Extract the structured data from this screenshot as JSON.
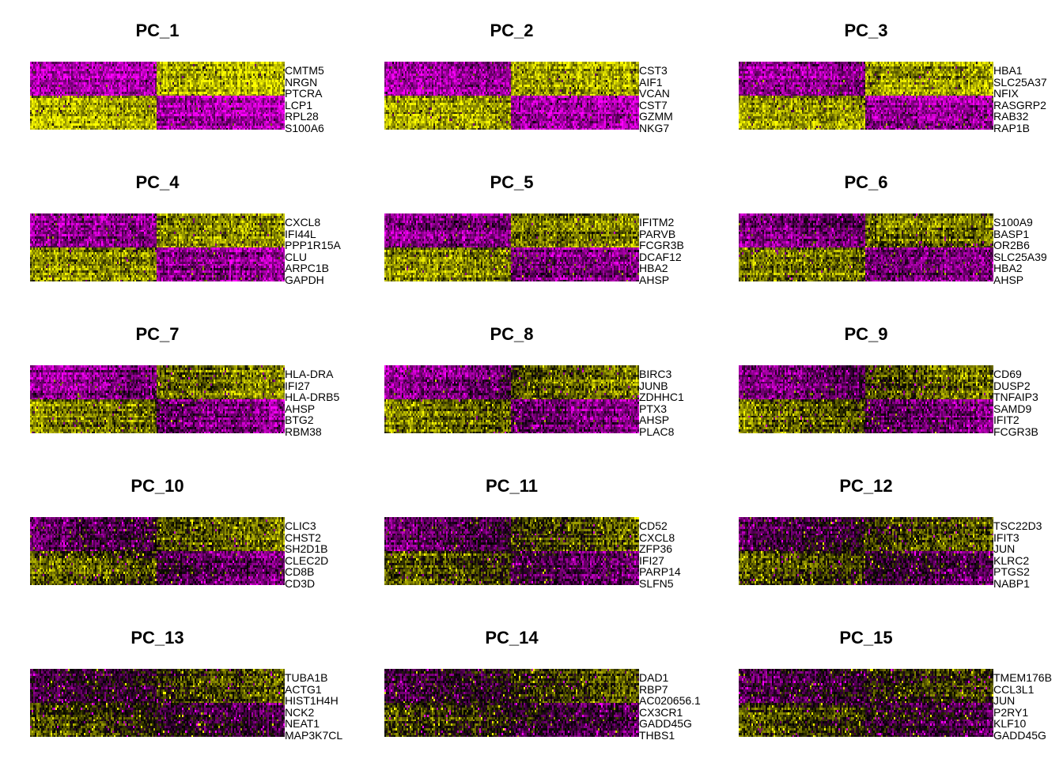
{
  "chart_data": [
    {
      "type": "heatmap",
      "title": "PC_1",
      "row_labels": [
        "CMTM5",
        "NRGN",
        "PTCRA",
        "LCP1",
        "RPL28",
        "S100A6"
      ],
      "colors": {
        "low": "#ff00ff",
        "mid": "#000000",
        "high": "#ffff00"
      }
    },
    {
      "type": "heatmap",
      "title": "PC_2",
      "row_labels": [
        "CST3",
        "AIF1",
        "VCAN",
        "CST7",
        "GZMM",
        "NKG7"
      ],
      "colors": {
        "low": "#ff00ff",
        "mid": "#000000",
        "high": "#ffff00"
      }
    },
    {
      "type": "heatmap",
      "title": "PC_3",
      "row_labels": [
        "HBA1",
        "SLC25A37",
        "NFIX",
        "RASGRP2",
        "RAB32",
        "RAP1B"
      ],
      "colors": {
        "low": "#ff00ff",
        "mid": "#000000",
        "high": "#ffff00"
      }
    },
    {
      "type": "heatmap",
      "title": "PC_4",
      "row_labels": [
        "CXCL8",
        "IFI44L",
        "PPP1R15A",
        "CLU",
        "ARPC1B",
        "GAPDH"
      ],
      "colors": {
        "low": "#ff00ff",
        "mid": "#000000",
        "high": "#ffff00"
      }
    },
    {
      "type": "heatmap",
      "title": "PC_5",
      "row_labels": [
        "IFITM2",
        "PARVB",
        "FCGR3B",
        "DCAF12",
        "HBA2",
        "AHSP"
      ],
      "colors": {
        "low": "#ff00ff",
        "mid": "#000000",
        "high": "#ffff00"
      }
    },
    {
      "type": "heatmap",
      "title": "PC_6",
      "row_labels": [
        "S100A9",
        "BASP1",
        "OR2B6",
        "SLC25A39",
        "HBA2",
        "AHSP"
      ],
      "colors": {
        "low": "#ff00ff",
        "mid": "#000000",
        "high": "#ffff00"
      }
    },
    {
      "type": "heatmap",
      "title": "PC_7",
      "row_labels": [
        "HLA-DRA",
        "IFI27",
        "HLA-DRB5",
        "AHSP",
        "BTG2",
        "RBM38"
      ],
      "colors": {
        "low": "#ff00ff",
        "mid": "#000000",
        "high": "#ffff00"
      }
    },
    {
      "type": "heatmap",
      "title": "PC_8",
      "row_labels": [
        "BIRC3",
        "JUNB",
        "ZDHHC1",
        "PTX3",
        "AHSP",
        "PLAC8"
      ],
      "colors": {
        "low": "#ff00ff",
        "mid": "#000000",
        "high": "#ffff00"
      }
    },
    {
      "type": "heatmap",
      "title": "PC_9",
      "row_labels": [
        "CD69",
        "DUSP2",
        "TNFAIP3",
        "SAMD9",
        "IFIT2",
        "FCGR3B"
      ],
      "colors": {
        "low": "#ff00ff",
        "mid": "#000000",
        "high": "#ffff00"
      }
    },
    {
      "type": "heatmap",
      "title": "PC_10",
      "row_labels": [
        "CLIC3",
        "CHST2",
        "SH2D1B",
        "CLEC2D",
        "CD8B",
        "CD3D"
      ],
      "colors": {
        "low": "#ff00ff",
        "mid": "#000000",
        "high": "#ffff00"
      }
    },
    {
      "type": "heatmap",
      "title": "PC_11",
      "row_labels": [
        "CD52",
        "CXCL8",
        "ZFP36",
        "IFI27",
        "PARP14",
        "SLFN5"
      ],
      "colors": {
        "low": "#ff00ff",
        "mid": "#000000",
        "high": "#ffff00"
      }
    },
    {
      "type": "heatmap",
      "title": "PC_12",
      "row_labels": [
        "TSC22D3",
        "IFIT3",
        "JUN",
        "KLRC2",
        "PTGS2",
        "NABP1"
      ],
      "colors": {
        "low": "#ff00ff",
        "mid": "#000000",
        "high": "#ffff00"
      }
    },
    {
      "type": "heatmap",
      "title": "PC_13",
      "row_labels": [
        "TUBA1B",
        "ACTG1",
        "HIST1H4H",
        "NCK2",
        "NEAT1",
        "MAP3K7CL"
      ],
      "colors": {
        "low": "#ff00ff",
        "mid": "#000000",
        "high": "#ffff00"
      }
    },
    {
      "type": "heatmap",
      "title": "PC_14",
      "row_labels": [
        "DAD1",
        "RBP7",
        "AC020656.1",
        "CX3CR1",
        "GADD45G",
        "THBS1"
      ],
      "colors": {
        "low": "#ff00ff",
        "mid": "#000000",
        "high": "#ffff00"
      }
    },
    {
      "type": "heatmap",
      "title": "PC_15",
      "row_labels": [
        "TMEM176B",
        "CCL3L1",
        "JUN",
        "P2RY1",
        "KLF10",
        "GADD45G"
      ],
      "colors": {
        "low": "#ff00ff",
        "mid": "#000000",
        "high": "#ffff00"
      }
    }
  ]
}
